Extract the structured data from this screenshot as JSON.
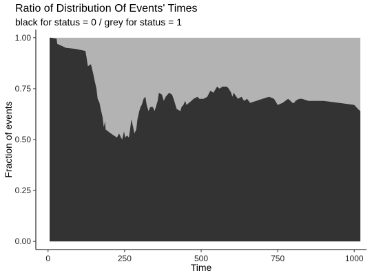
{
  "chart_data": {
    "type": "area",
    "title": "Ratio of Distribution Of Events' Times",
    "subtitle": "black for status = 0 / grey for status = 1",
    "xlabel": "Time",
    "ylabel": "Fraction of events",
    "xlim": [
      -40,
      1040
    ],
    "ylim": [
      -0.04,
      1.04
    ],
    "xticks": [
      0,
      250,
      500,
      750,
      1000
    ],
    "yticks": [
      0,
      0.25,
      0.5,
      0.75,
      1
    ],
    "ytick_labels": [
      "0.00",
      "0.25",
      "0.50",
      "0.75",
      "1.00"
    ],
    "grid": false,
    "series": [
      {
        "color": "#333333",
        "x": [
          5,
          10,
          28,
          30,
          52,
          58,
          90,
          122,
          126,
          130,
          140,
          148,
          152,
          158,
          162,
          168,
          172,
          178,
          182,
          186,
          188,
          205,
          215,
          225,
          232,
          238,
          242,
          248,
          252,
          258,
          264,
          268,
          272,
          278,
          282,
          288,
          292,
          298,
          302,
          306,
          312,
          318,
          322,
          328,
          334,
          342,
          348,
          352,
          358,
          362,
          372,
          378,
          384,
          390,
          395,
          405,
          410,
          420,
          432,
          436,
          442,
          448,
          452,
          468,
          475,
          488,
          494,
          500,
          508,
          520,
          530,
          540,
          552,
          560,
          570,
          584,
          590,
          594,
          598,
          602,
          606,
          620,
          632,
          640,
          650,
          660,
          680,
          700,
          722,
          738,
          750,
          766,
          784,
          792,
          798,
          804,
          808,
          820,
          826,
          830,
          850,
          900,
          950,
          1000,
          1012,
          1020
        ],
        "values": [
          1.0,
          1.0,
          0.995,
          0.97,
          0.955,
          0.95,
          0.945,
          0.935,
          0.9,
          0.86,
          0.87,
          0.82,
          0.79,
          0.75,
          0.7,
          0.68,
          0.65,
          0.61,
          0.56,
          0.59,
          0.55,
          0.53,
          0.52,
          0.51,
          0.53,
          0.51,
          0.5,
          0.54,
          0.51,
          0.52,
          0.51,
          0.55,
          0.6,
          0.56,
          0.53,
          0.55,
          0.6,
          0.64,
          0.66,
          0.67,
          0.7,
          0.71,
          0.67,
          0.64,
          0.66,
          0.66,
          0.64,
          0.66,
          0.69,
          0.73,
          0.72,
          0.69,
          0.71,
          0.72,
          0.73,
          0.72,
          0.7,
          0.65,
          0.64,
          0.66,
          0.67,
          0.69,
          0.67,
          0.69,
          0.7,
          0.71,
          0.7,
          0.7,
          0.7,
          0.71,
          0.74,
          0.73,
          0.76,
          0.75,
          0.76,
          0.76,
          0.75,
          0.74,
          0.73,
          0.71,
          0.73,
          0.7,
          0.71,
          0.69,
          0.7,
          0.68,
          0.69,
          0.7,
          0.71,
          0.7,
          0.67,
          0.68,
          0.7,
          0.69,
          0.68,
          0.68,
          0.69,
          0.7,
          0.7,
          0.7,
          0.69,
          0.69,
          0.68,
          0.67,
          0.65,
          0.64
        ],
        "fill_complement_color": "#b3b3b3"
      }
    ]
  }
}
